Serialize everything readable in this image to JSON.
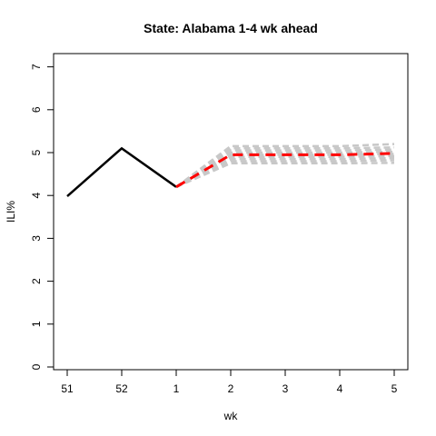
{
  "chart_data": {
    "type": "line",
    "title": "State: Alabama 1-4 wk ahead",
    "xlabel": "wk",
    "ylabel": "ILI%",
    "categories": [
      "51",
      "52",
      "1",
      "2",
      "3",
      "4",
      "5"
    ],
    "ylim": [
      0,
      7
    ],
    "yticks": [
      "0",
      "1",
      "2",
      "3",
      "4",
      "5",
      "6",
      "7"
    ],
    "grid": false,
    "legend": "none",
    "series": [
      {
        "role": "observed",
        "color": "#000000",
        "style": "solid",
        "x": [
          "51",
          "52",
          "1"
        ],
        "values": [
          3.98,
          5.1,
          4.2
        ]
      },
      {
        "role": "forecast",
        "color": "#ff0000",
        "style": "dashed",
        "x": [
          "1",
          "2",
          "3",
          "4",
          "5"
        ],
        "values": [
          4.2,
          4.95,
          4.95,
          4.95,
          4.98
        ]
      }
    ],
    "ensemble": {
      "color": "#c8c8c8",
      "style": "dashed",
      "x": [
        "1",
        "2",
        "3",
        "4",
        "5"
      ],
      "members": [
        [
          4.2,
          5.15,
          5.15,
          5.15,
          5.2
        ],
        [
          4.2,
          5.1,
          5.1,
          5.1,
          5.12
        ],
        [
          4.2,
          5.05,
          5.05,
          5.05,
          5.07
        ],
        [
          4.2,
          5.0,
          5.0,
          5.0,
          5.02
        ],
        [
          4.2,
          4.95,
          4.95,
          4.95,
          4.97
        ],
        [
          4.2,
          4.9,
          4.9,
          4.9,
          4.92
        ],
        [
          4.2,
          4.85,
          4.85,
          4.85,
          4.87
        ],
        [
          4.2,
          4.8,
          4.8,
          4.8,
          4.82
        ],
        [
          4.2,
          4.75,
          4.75,
          4.75,
          4.76
        ]
      ]
    }
  }
}
